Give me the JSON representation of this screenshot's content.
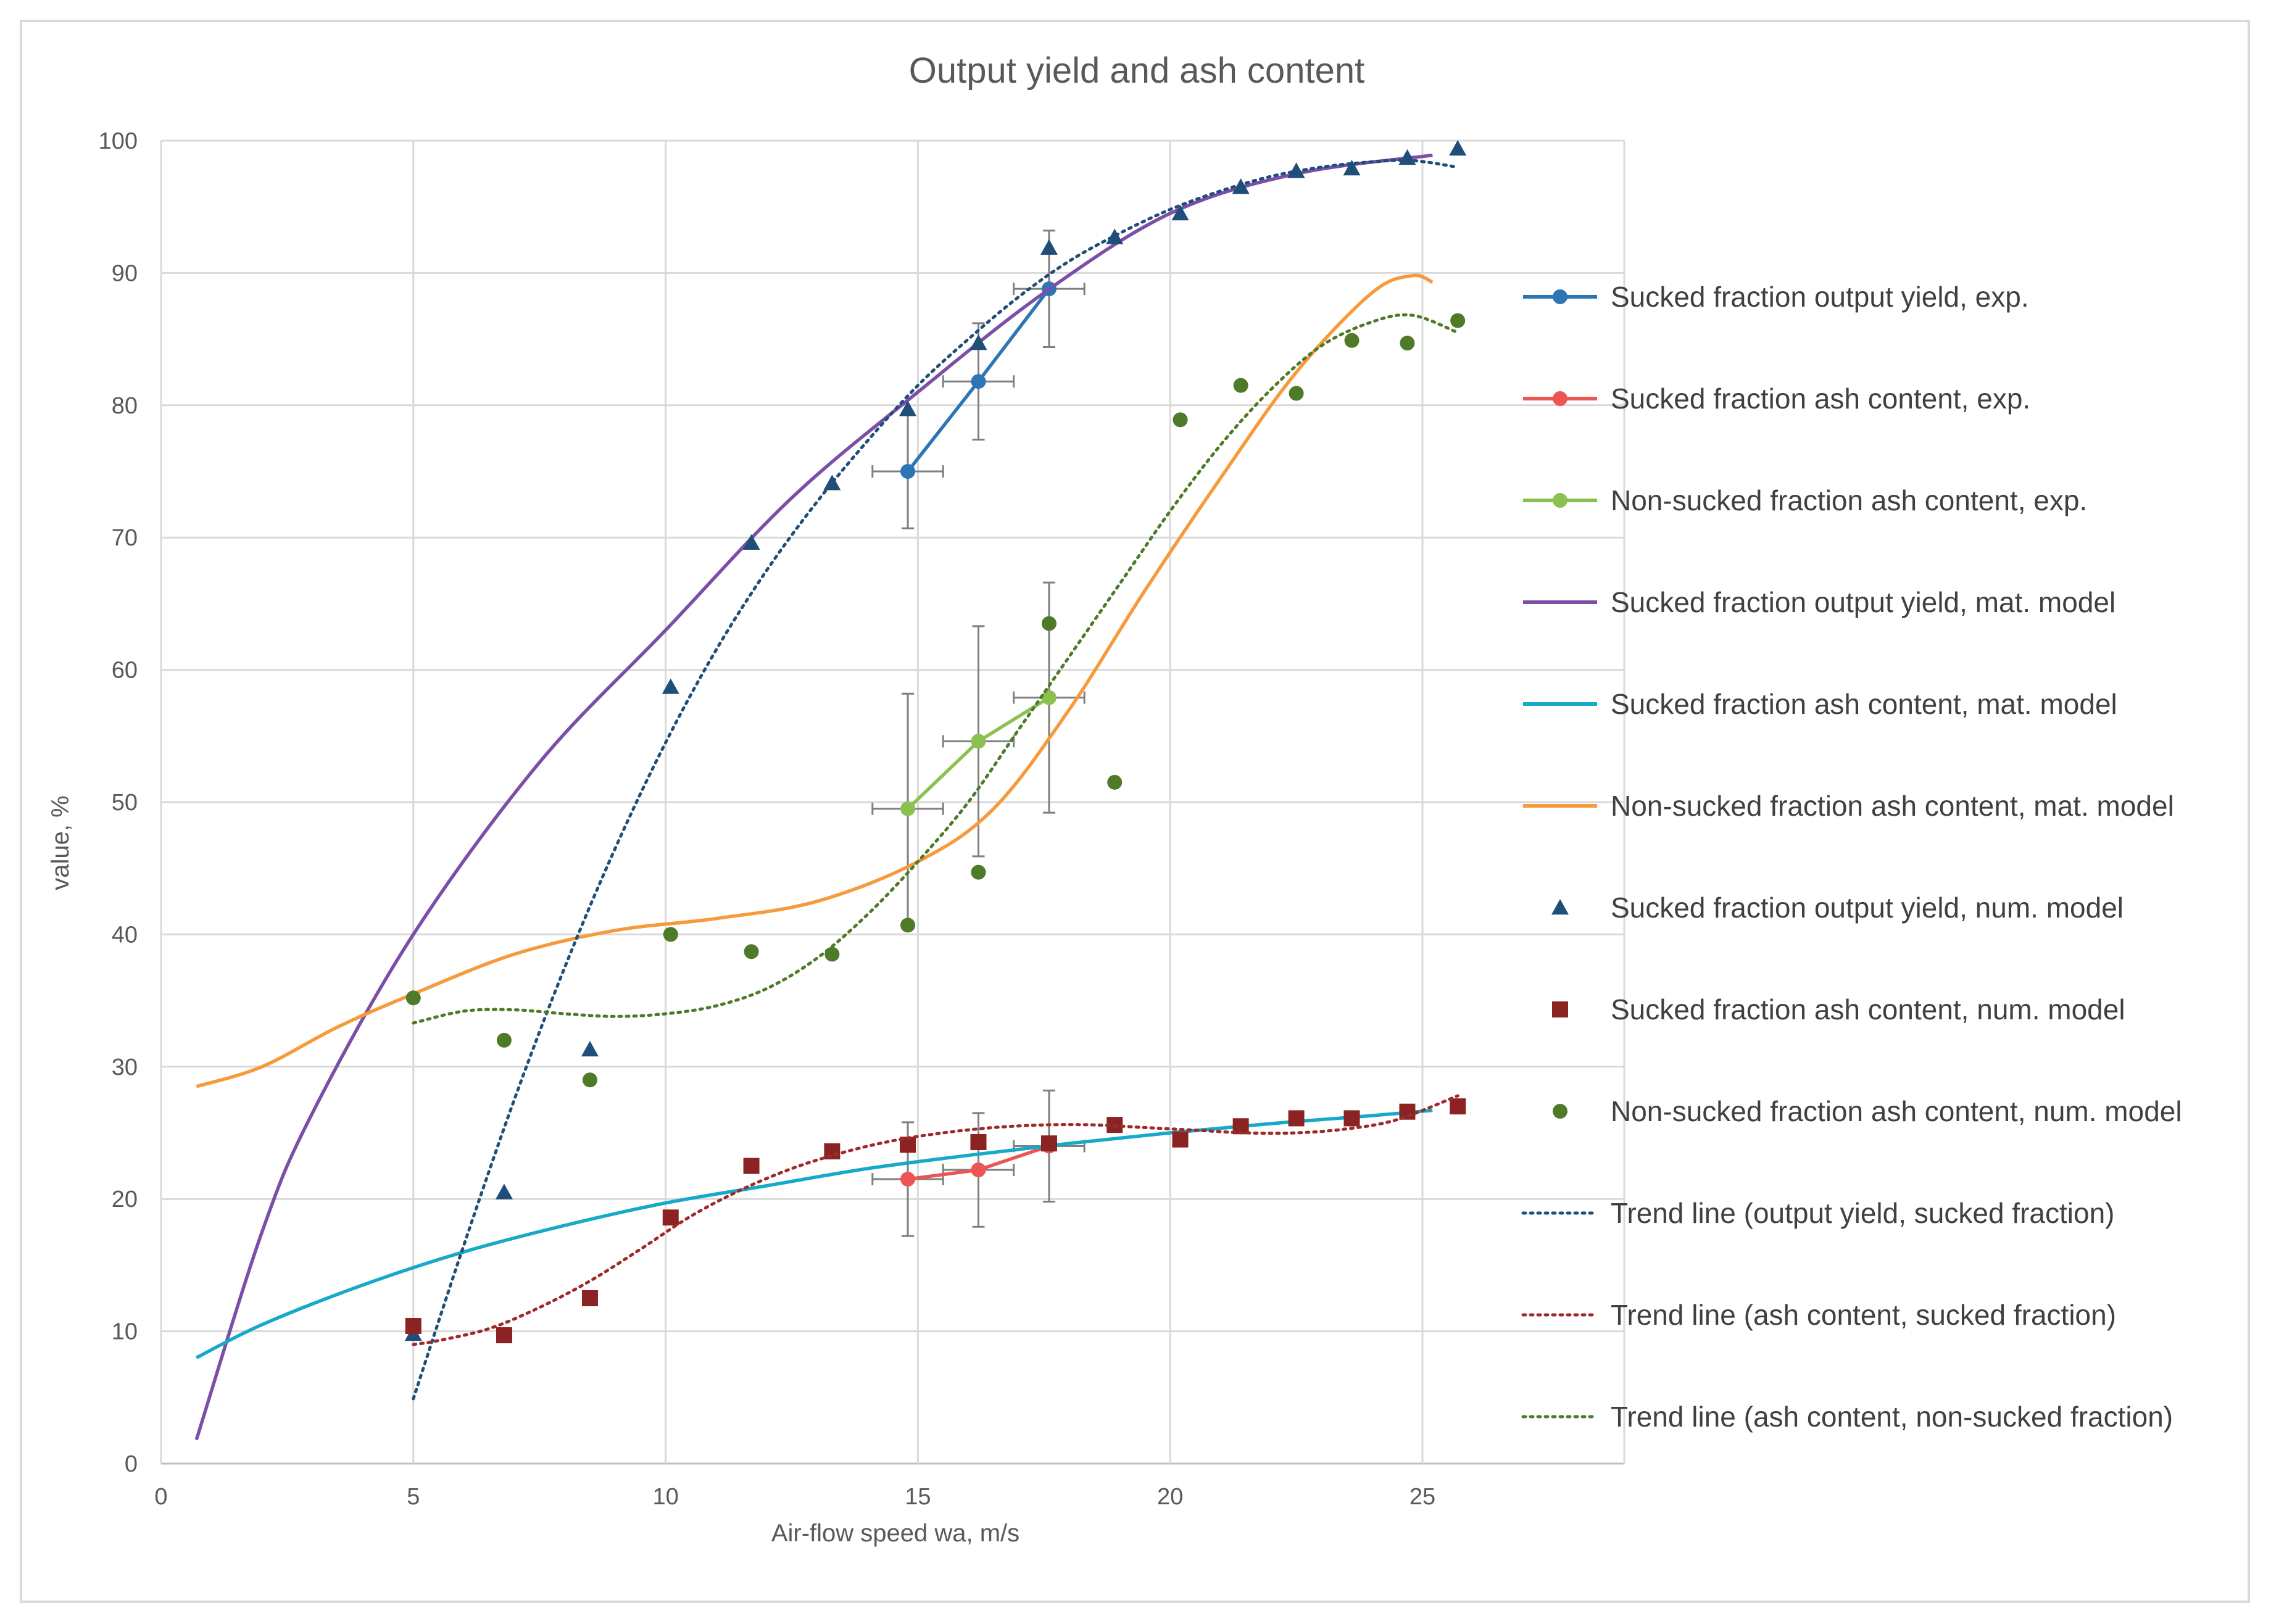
{
  "chart_data": {
    "type": "scatter",
    "title": "Output yield and ash content",
    "xlabel": "Air-flow speed wa, m/s",
    "ylabel": "value, %",
    "xlim": [
      0,
      29
    ],
    "ylim": [
      0,
      100
    ],
    "x_ticks": [
      0,
      5,
      10,
      15,
      20,
      25
    ],
    "y_ticks": [
      0,
      10,
      20,
      30,
      40,
      50,
      60,
      70,
      80,
      90,
      100
    ],
    "grid": true,
    "legend_position": "right",
    "series": [
      {
        "name": "Sucked fraction output yield, exp.",
        "kind": "line-marker",
        "marker": "circle",
        "color": "#2e75b6",
        "x": [
          14.8,
          16.2,
          17.6
        ],
        "y": [
          75.0,
          81.8,
          88.8
        ],
        "xerr": [
          0.7,
          0.7,
          0.7
        ],
        "yerr": [
          4.3,
          4.4,
          4.4
        ]
      },
      {
        "name": "Sucked fraction ash content, exp.",
        "kind": "line-marker",
        "marker": "circle",
        "color": "#ed5454",
        "x": [
          14.8,
          16.2,
          17.6
        ],
        "y": [
          21.5,
          22.2,
          24.0
        ],
        "xerr": [
          0.7,
          0.7,
          0.7
        ],
        "yerr": [
          4.3,
          4.3,
          4.2
        ]
      },
      {
        "name": "Non-sucked fraction ash content, exp.",
        "kind": "line-marker",
        "marker": "circle",
        "color": "#8cc152",
        "x": [
          14.8,
          16.2,
          17.6
        ],
        "y": [
          49.5,
          54.6,
          57.9
        ],
        "xerr": [
          0.7,
          0.7,
          0.7
        ],
        "yerr": [
          8.7,
          8.7,
          8.7
        ]
      },
      {
        "name": "Sucked fraction output yield, mat. model",
        "kind": "line",
        "color": "#7b4fa8",
        "x": [
          0.7,
          2,
          3,
          5,
          7.5,
          10,
          12.5,
          15,
          17.5,
          20,
          22.5,
          25.2
        ],
        "y": [
          1.8,
          17.5,
          26.5,
          40,
          53,
          63,
          73,
          81,
          88.5,
          94.5,
          97.5,
          98.9
        ]
      },
      {
        "name": "Sucked fraction ash content, mat. model",
        "kind": "line",
        "color": "#17a9c8",
        "x": [
          0.7,
          2,
          4,
          6,
          8,
          10,
          12,
          14,
          16,
          18,
          20,
          22,
          24,
          25.2
        ],
        "y": [
          8.0,
          10.5,
          13.5,
          16,
          18,
          19.7,
          21,
          22.3,
          23.3,
          24.2,
          25,
          25.7,
          26.3,
          26.7
        ]
      },
      {
        "name": "Non-sucked fraction ash content, mat. model",
        "kind": "line",
        "color": "#f79a3c",
        "x": [
          0.7,
          2,
          3.5,
          5,
          7,
          9,
          11,
          13,
          15,
          16.5,
          18,
          19.5,
          21,
          22.5,
          24,
          24.8,
          25.2
        ],
        "y": [
          28.5,
          30,
          33,
          35.5,
          38.5,
          40.3,
          41.2,
          42.5,
          45.5,
          49.5,
          57,
          66,
          74.5,
          82.5,
          88.5,
          89.8,
          89.3
        ]
      },
      {
        "name": "Sucked fraction output yield, num. model",
        "kind": "scatter",
        "marker": "triangle",
        "color": "#1f4e79",
        "x": [
          5.0,
          6.8,
          8.5,
          10.1,
          11.7,
          13.3,
          14.8,
          16.2,
          17.6,
          18.9,
          20.2,
          21.4,
          22.5,
          23.6,
          24.7,
          25.7
        ],
        "y": [
          9.8,
          20.5,
          31.3,
          58.7,
          69.6,
          74.1,
          79.7,
          84.7,
          91.9,
          92.7,
          94.5,
          96.5,
          97.7,
          97.9,
          98.7,
          99.4
        ]
      },
      {
        "name": "Sucked fraction ash content, num. model",
        "kind": "scatter",
        "marker": "square",
        "color": "#8b2323",
        "x": [
          5.0,
          6.8,
          8.5,
          10.1,
          11.7,
          13.3,
          14.8,
          16.2,
          17.6,
          18.9,
          20.2,
          21.4,
          22.5,
          23.6,
          24.7,
          25.7
        ],
        "y": [
          10.4,
          9.7,
          12.5,
          18.6,
          22.5,
          23.6,
          24.1,
          24.3,
          24.2,
          25.6,
          24.5,
          25.5,
          26.1,
          26.1,
          26.6,
          27.0
        ]
      },
      {
        "name": "Non-sucked fraction ash content, num. model",
        "kind": "scatter",
        "marker": "circle",
        "color": "#4f7a28",
        "x": [
          5.0,
          6.8,
          8.5,
          10.1,
          11.7,
          13.3,
          14.8,
          16.2,
          17.6,
          18.9,
          20.2,
          21.4,
          22.5,
          23.6,
          24.7,
          25.7
        ],
        "y": [
          35.2,
          32.0,
          29.0,
          40.0,
          38.7,
          38.5,
          40.7,
          44.7,
          63.5,
          51.5,
          78.9,
          81.5,
          80.9,
          84.9,
          84.7,
          86.4
        ]
      },
      {
        "name": "Trend line (output yield, sucked fraction)",
        "kind": "dotted",
        "color": "#1f4e79",
        "x": [
          5.0,
          6.0,
          7.0,
          8.0,
          9.0,
          10.0,
          11.0,
          12.0,
          13.0,
          14.0,
          15.0,
          16.0,
          17.0,
          18.0,
          19.0,
          20.0,
          21.0,
          22.0,
          23.0,
          24.0,
          24.8,
          25.7
        ],
        "y": [
          4.9,
          16.5,
          27.5,
          37.5,
          46.5,
          54.5,
          61.5,
          67.5,
          72.7,
          77.3,
          81.5,
          85.0,
          88.2,
          90.9,
          93.0,
          94.8,
          96.2,
          97.3,
          98.0,
          98.4,
          98.5,
          98.0
        ]
      },
      {
        "name": "Trend line (ash content, sucked fraction)",
        "kind": "dotted",
        "color": "#9e2a2a",
        "x": [
          5.0,
          5.5,
          6.5,
          7.5,
          8.5,
          9.5,
          10.5,
          11.5,
          12.5,
          13.5,
          14.5,
          15.5,
          16.5,
          17.5,
          18.5,
          19.5,
          20.5,
          21.5,
          22.5,
          23.5,
          24.5,
          25.7
        ],
        "y": [
          9.0,
          9.3,
          10.2,
          11.8,
          13.8,
          16.2,
          18.7,
          20.7,
          22.3,
          23.5,
          24.4,
          25.0,
          25.4,
          25.6,
          25.6,
          25.4,
          25.2,
          25.0,
          25.0,
          25.3,
          26.0,
          27.8
        ]
      },
      {
        "name": "Trend line (ash content, non-sucked fraction)",
        "kind": "dotted",
        "color": "#4f7a28",
        "x": [
          5.0,
          6.0,
          7.0,
          8.0,
          9.0,
          10.0,
          11.0,
          12.0,
          13.0,
          14.0,
          15.0,
          16.0,
          17.0,
          18.0,
          19.0,
          20.0,
          21.0,
          22.0,
          23.0,
          24.0,
          24.8,
          25.7
        ],
        "y": [
          33.3,
          34.2,
          34.3,
          34.0,
          33.8,
          34.0,
          34.6,
          35.9,
          38.2,
          41.5,
          45.5,
          50.0,
          55.5,
          61.0,
          66.5,
          72.0,
          77.0,
          81.2,
          84.5,
          86.3,
          86.8,
          85.5
        ]
      }
    ]
  }
}
